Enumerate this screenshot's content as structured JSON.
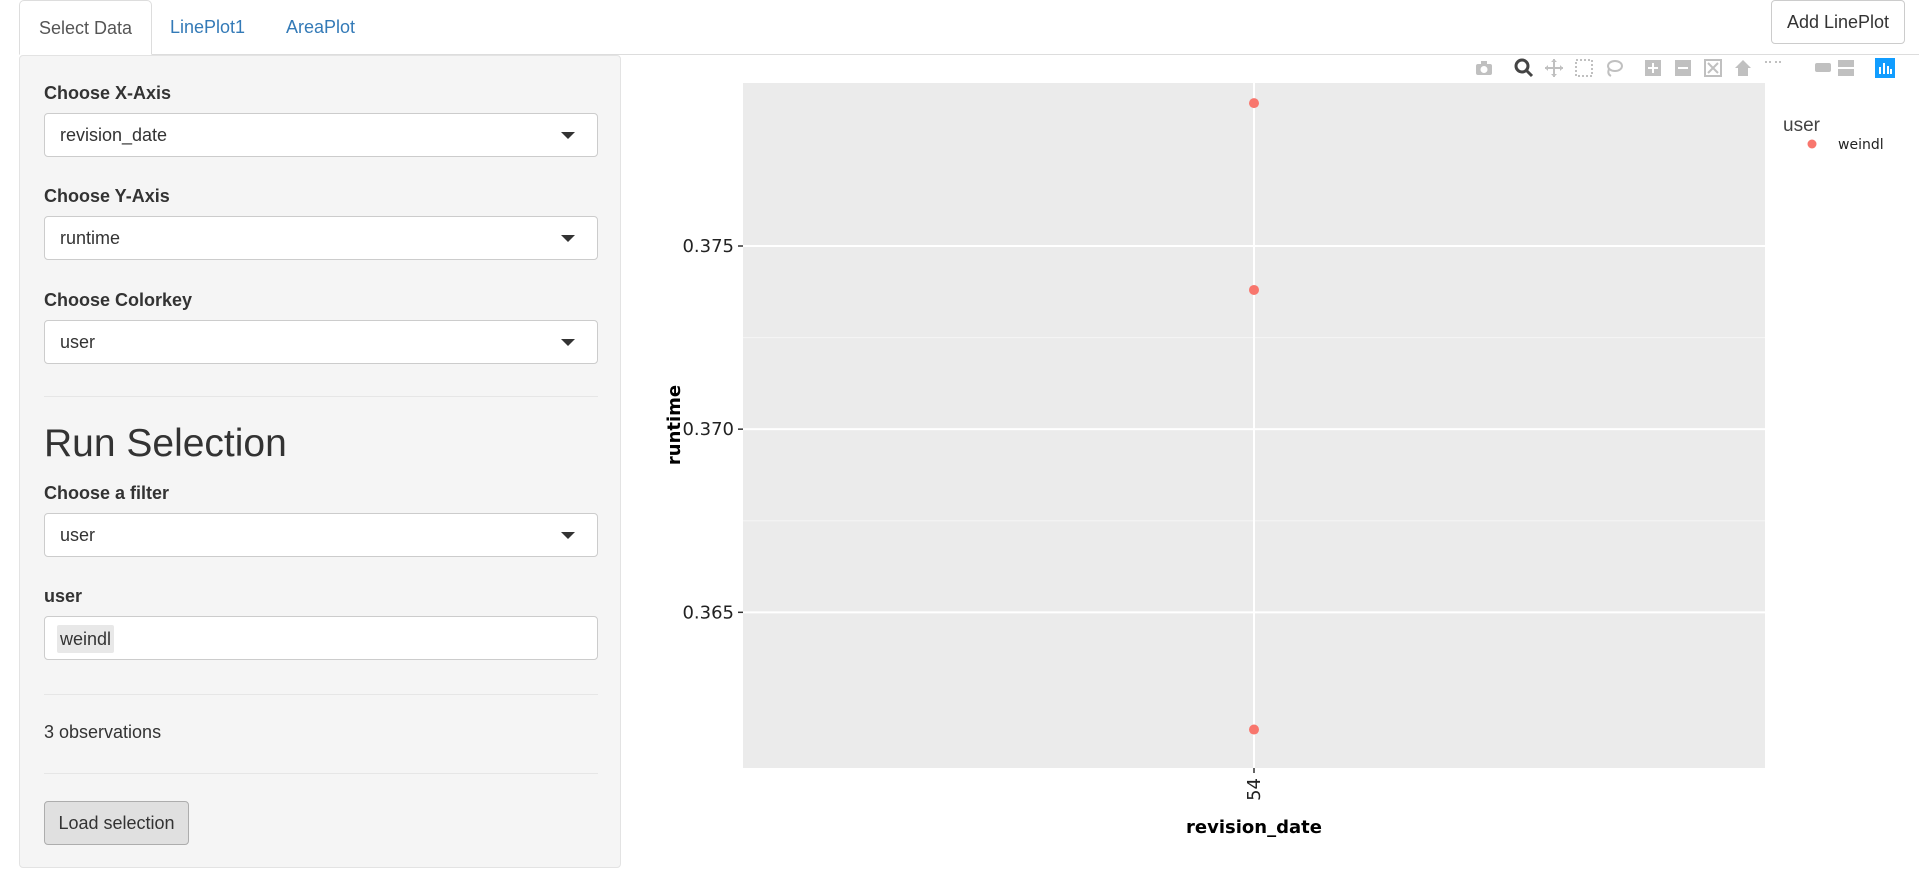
{
  "tabs": [
    {
      "label": "Select Data",
      "active": true
    },
    {
      "label": "LinePlot1",
      "active": false
    },
    {
      "label": "AreaPlot",
      "active": false
    }
  ],
  "add_lineplot_label": "Add LinePlot",
  "sidebar": {
    "x_axis": {
      "label": "Choose X-Axis",
      "value": "revision_date"
    },
    "y_axis": {
      "label": "Choose Y-Axis",
      "value": "runtime"
    },
    "colorkey": {
      "label": "Choose Colorkey",
      "value": "user"
    },
    "run_selection_heading": "Run Selection",
    "filter": {
      "label": "Choose a filter",
      "value": "user"
    },
    "user_field": {
      "label": "user",
      "value": "weindl"
    },
    "observations": "3 observations",
    "load_label": "Load selection"
  },
  "modebar": {
    "icons": [
      "camera-icon",
      "zoom-icon",
      "pan-icon",
      "box-select-icon",
      "lasso-icon",
      "zoom-in-icon",
      "zoom-out-icon",
      "autoscale-icon",
      "home-icon",
      "spike-lines-icon",
      "hover-closest-icon",
      "hover-compare-icon",
      "plotly-logo-icon"
    ],
    "title": "user",
    "accent": "#119dff"
  },
  "chart_data": {
    "type": "scatter",
    "xlabel": "revision_date",
    "ylabel": "runtime",
    "categories": [
      "54"
    ],
    "y_ticks": [
      0.365,
      0.37,
      0.375
    ],
    "y_tick_labels": [
      "0.365",
      "0.370",
      "0.375"
    ],
    "ylim": [
      0.36075,
      0.37945
    ],
    "legend": {
      "position": "top-right",
      "entries": [
        "weindl"
      ]
    },
    "grid": true,
    "series": [
      {
        "name": "weindl",
        "color": "#f8766d",
        "points": [
          {
            "x": "54",
            "y": 0.3789
          },
          {
            "x": "54",
            "y": 0.3738
          },
          {
            "x": "54",
            "y": 0.3618
          }
        ]
      }
    ]
  }
}
